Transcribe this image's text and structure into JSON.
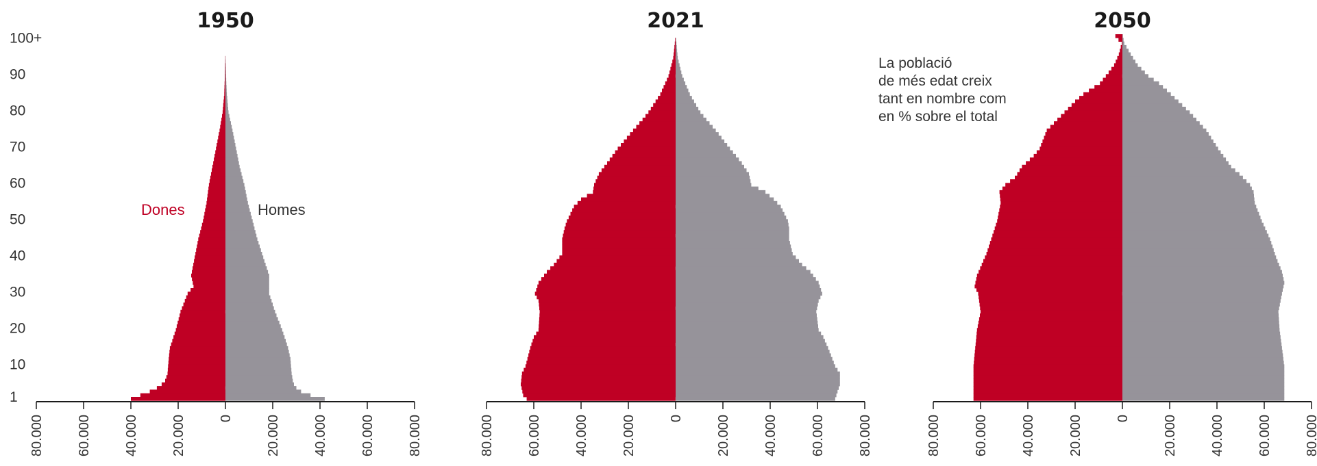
{
  "chart_data": {
    "type": "population-pyramid",
    "colors": {
      "women": "#bf0024",
      "men": "#96939a",
      "axis": "#1a1a1a"
    },
    "age_axis": {
      "min": 0,
      "max": 101,
      "ticks": [
        1,
        10,
        20,
        30,
        40,
        50,
        60,
        70,
        80,
        90,
        100
      ],
      "tick_labels": [
        "1",
        "10",
        "20",
        "30",
        "40",
        "50",
        "60",
        "70",
        "80",
        "90",
        "100+"
      ]
    },
    "value_axis": {
      "ticks": [
        -80000,
        -60000,
        -40000,
        -20000,
        0,
        20000,
        40000,
        60000,
        80000
      ],
      "tick_labels": [
        "80.000",
        "60.000",
        "40.000",
        "20.000",
        "0",
        "20.000",
        "40.000",
        "60.000",
        "80.000"
      ],
      "range": [
        -80000,
        80000
      ]
    },
    "series_labels": {
      "women": "Dones",
      "men": "Homes"
    },
    "annotation": {
      "lines": [
        "La població",
        "de més edat creix",
        "tant en nombre com",
        "en % sobre el total"
      ]
    },
    "panels": [
      {
        "title": "1950",
        "women_knots": [
          [
            1,
            40000
          ],
          [
            2,
            36000
          ],
          [
            3,
            32000
          ],
          [
            4,
            29000
          ],
          [
            5,
            27000
          ],
          [
            6,
            25500
          ],
          [
            8,
            24500
          ],
          [
            12,
            24000
          ],
          [
            15,
            23500
          ],
          [
            20,
            21000
          ],
          [
            25,
            19000
          ],
          [
            30,
            16000
          ],
          [
            32,
            13500
          ],
          [
            35,
            14500
          ],
          [
            40,
            13000
          ],
          [
            45,
            11500
          ],
          [
            50,
            9500
          ],
          [
            55,
            8000
          ],
          [
            60,
            7000
          ],
          [
            65,
            5500
          ],
          [
            70,
            4000
          ],
          [
            75,
            2500
          ],
          [
            80,
            1200
          ],
          [
            85,
            500
          ],
          [
            90,
            250
          ],
          [
            95,
            100
          ],
          [
            100,
            30
          ]
        ],
        "men_knots": [
          [
            1,
            42000
          ],
          [
            2,
            36000
          ],
          [
            3,
            32000
          ],
          [
            4,
            30000
          ],
          [
            5,
            29000
          ],
          [
            6,
            28500
          ],
          [
            8,
            28000
          ],
          [
            12,
            27500
          ],
          [
            15,
            26500
          ],
          [
            20,
            24000
          ],
          [
            25,
            21000
          ],
          [
            30,
            18500
          ],
          [
            35,
            18500
          ],
          [
            40,
            16000
          ],
          [
            45,
            13500
          ],
          [
            50,
            11500
          ],
          [
            55,
            9500
          ],
          [
            60,
            8000
          ],
          [
            65,
            6000
          ],
          [
            70,
            4500
          ],
          [
            75,
            3000
          ],
          [
            80,
            1300
          ],
          [
            85,
            600
          ],
          [
            90,
            250
          ],
          [
            95,
            100
          ],
          [
            100,
            30
          ]
        ]
      },
      {
        "title": "2021",
        "women_knots": [
          [
            1,
            63000
          ],
          [
            2,
            64500
          ],
          [
            5,
            65500
          ],
          [
            8,
            65000
          ],
          [
            10,
            63500
          ],
          [
            15,
            61500
          ],
          [
            18,
            60000
          ],
          [
            20,
            58000
          ],
          [
            25,
            57500
          ],
          [
            28,
            58000
          ],
          [
            30,
            59500
          ],
          [
            33,
            58000
          ],
          [
            36,
            54500
          ],
          [
            38,
            51500
          ],
          [
            41,
            48000
          ],
          [
            45,
            48000
          ],
          [
            48,
            47000
          ],
          [
            50,
            46000
          ],
          [
            54,
            43000
          ],
          [
            56,
            40000
          ],
          [
            58,
            35000
          ],
          [
            60,
            34500
          ],
          [
            63,
            32500
          ],
          [
            66,
            29000
          ],
          [
            70,
            24500
          ],
          [
            75,
            18000
          ],
          [
            78,
            14000
          ],
          [
            80,
            11500
          ],
          [
            85,
            6500
          ],
          [
            90,
            3000
          ],
          [
            95,
            1000
          ],
          [
            100,
            200
          ]
        ],
        "men_knots": [
          [
            1,
            67500
          ],
          [
            3,
            68500
          ],
          [
            5,
            69500
          ],
          [
            8,
            69500
          ],
          [
            10,
            67500
          ],
          [
            15,
            64500
          ],
          [
            18,
            62500
          ],
          [
            20,
            60500
          ],
          [
            25,
            59500
          ],
          [
            28,
            60500
          ],
          [
            30,
            62000
          ],
          [
            33,
            60500
          ],
          [
            36,
            57000
          ],
          [
            38,
            53500
          ],
          [
            41,
            49500
          ],
          [
            45,
            48000
          ],
          [
            48,
            48000
          ],
          [
            50,
            47500
          ],
          [
            54,
            44500
          ],
          [
            56,
            41500
          ],
          [
            58,
            38000
          ],
          [
            60,
            32000
          ],
          [
            63,
            31000
          ],
          [
            66,
            28000
          ],
          [
            70,
            23000
          ],
          [
            75,
            17000
          ],
          [
            78,
            13000
          ],
          [
            80,
            10500
          ],
          [
            85,
            6000
          ],
          [
            90,
            2800
          ],
          [
            95,
            900
          ],
          [
            100,
            200
          ]
        ]
      },
      {
        "title": "2050",
        "women_knots": [
          [
            1,
            63000
          ],
          [
            10,
            63000
          ],
          [
            20,
            61500
          ],
          [
            25,
            60000
          ],
          [
            30,
            61000
          ],
          [
            32,
            62500
          ],
          [
            35,
            61500
          ],
          [
            38,
            59500
          ],
          [
            41,
            57500
          ],
          [
            45,
            55500
          ],
          [
            50,
            53000
          ],
          [
            55,
            51500
          ],
          [
            58,
            52000
          ],
          [
            60,
            49500
          ],
          [
            62,
            45500
          ],
          [
            65,
            42500
          ],
          [
            68,
            37500
          ],
          [
            70,
            35000
          ],
          [
            75,
            32000
          ],
          [
            80,
            24500
          ],
          [
            83,
            20000
          ],
          [
            85,
            16500
          ],
          [
            88,
            9500
          ],
          [
            90,
            7000
          ],
          [
            93,
            3500
          ],
          [
            96,
            1500
          ],
          [
            99,
            300
          ],
          [
            101,
            3000
          ]
        ],
        "men_knots": [
          [
            1,
            68500
          ],
          [
            10,
            68500
          ],
          [
            20,
            66500
          ],
          [
            25,
            66000
          ],
          [
            30,
            67500
          ],
          [
            33,
            68500
          ],
          [
            36,
            67500
          ],
          [
            40,
            65000
          ],
          [
            45,
            62500
          ],
          [
            50,
            59000
          ],
          [
            55,
            56000
          ],
          [
            58,
            55500
          ],
          [
            60,
            54000
          ],
          [
            63,
            49500
          ],
          [
            65,
            46000
          ],
          [
            70,
            40500
          ],
          [
            75,
            35500
          ],
          [
            80,
            28500
          ],
          [
            85,
            20500
          ],
          [
            88,
            15500
          ],
          [
            90,
            11000
          ],
          [
            93,
            6500
          ],
          [
            96,
            3500
          ],
          [
            99,
            800
          ],
          [
            101,
            200
          ]
        ]
      }
    ]
  }
}
